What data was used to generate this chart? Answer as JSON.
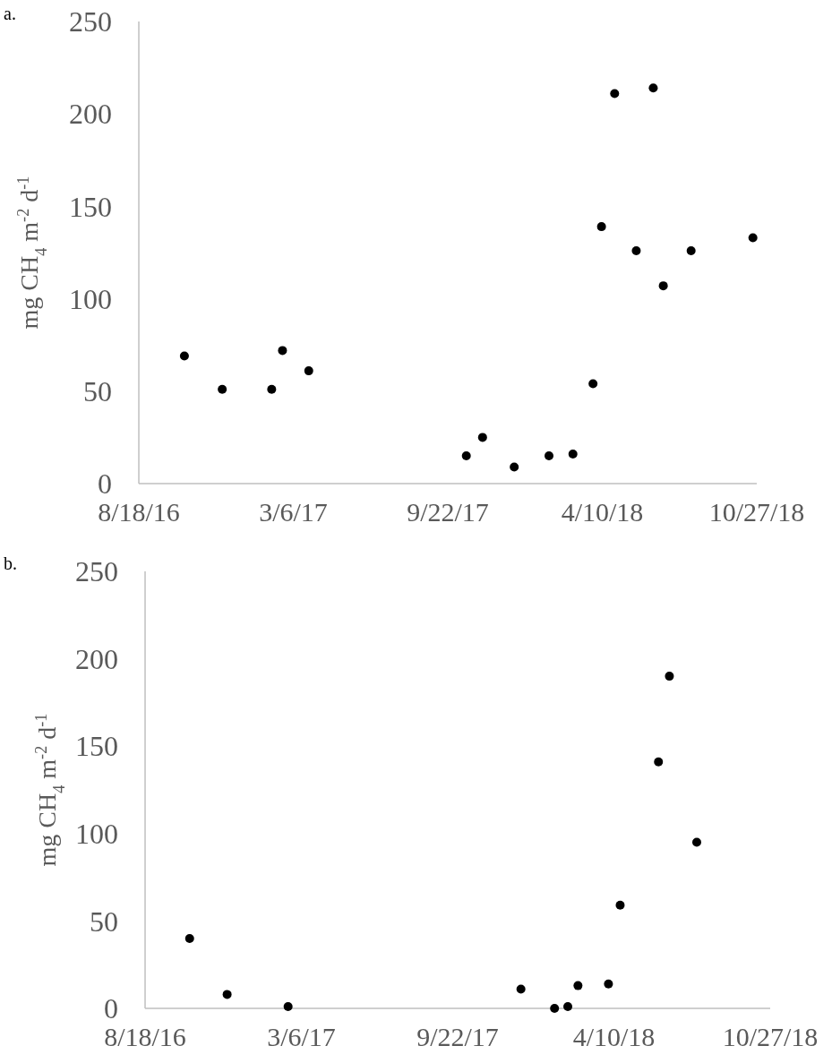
{
  "chart_data": [
    {
      "type": "scatter",
      "title": "a.",
      "ylabel": "mg CH$_{4}$ m$^{-2}$ d$^{-1}$",
      "marker": "circle",
      "grid": false,
      "xlim": [
        "2016-08-18",
        "2018-10-27"
      ],
      "xticks": [
        {
          "value": "2016-08-18",
          "label": "8/18/16"
        },
        {
          "value": "2017-03-06",
          "label": "3/6/17"
        },
        {
          "value": "2017-09-22",
          "label": "9/22/17"
        },
        {
          "value": "2018-04-10",
          "label": "4/10/18"
        },
        {
          "value": "2018-10-27",
          "label": "10/27/18"
        }
      ],
      "ylim": [
        0,
        250
      ],
      "yticks": [
        0,
        50,
        100,
        150,
        200,
        250
      ],
      "series": [
        {
          "color": "#000000",
          "x": [
            "2016-10-16",
            "2016-12-04",
            "2017-02-06",
            "2017-02-20",
            "2017-03-26",
            "2017-10-16",
            "2017-11-06",
            "2017-12-17",
            "2018-01-31",
            "2018-03-03",
            "2018-03-29",
            "2018-04-09",
            "2018-04-26",
            "2018-05-24",
            "2018-06-15",
            "2018-06-28",
            "2018-08-03",
            "2018-10-22"
          ],
          "values": [
            69,
            51,
            51,
            72,
            61,
            15,
            25,
            9,
            15,
            16,
            54,
            139,
            211,
            126,
            214,
            107,
            126,
            133
          ]
        }
      ]
    },
    {
      "type": "scatter",
      "title": "b.",
      "ylabel": "mg CH$_{4}$ m$^{-2}$ d$^{-1}$",
      "marker": "circle",
      "grid": false,
      "xlim": [
        "2016-08-18",
        "2018-10-27"
      ],
      "xticks": [
        {
          "value": "2016-08-18",
          "label": "8/18/16"
        },
        {
          "value": "2017-03-06",
          "label": "3/6/17"
        },
        {
          "value": "2017-09-22",
          "label": "9/22/17"
        },
        {
          "value": "2018-04-10",
          "label": "4/10/18"
        },
        {
          "value": "2018-10-27",
          "label": "10/27/18"
        }
      ],
      "ylim": [
        0,
        250
      ],
      "yticks": [
        0,
        50,
        100,
        150,
        200,
        250
      ],
      "series": [
        {
          "color": "#000000",
          "x": [
            "2016-10-14",
            "2016-12-01",
            "2017-02-17",
            "2017-12-12",
            "2018-01-24",
            "2018-02-10",
            "2018-02-23",
            "2018-04-03",
            "2018-04-18",
            "2018-06-06",
            "2018-06-20",
            "2018-07-25"
          ],
          "values": [
            40,
            8,
            1,
            11,
            0,
            1,
            13,
            14,
            59,
            141,
            190,
            95
          ]
        }
      ]
    }
  ]
}
